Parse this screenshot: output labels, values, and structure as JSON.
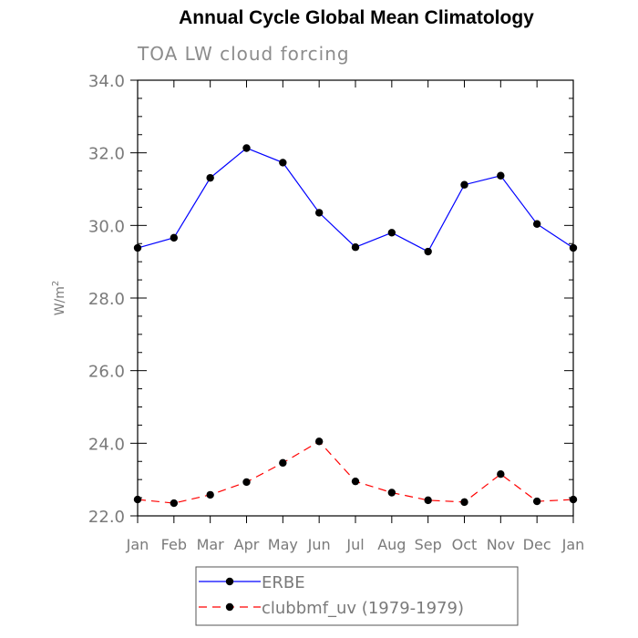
{
  "chart_data": {
    "type": "line",
    "title": "Annual Cycle Global Mean Climatology",
    "subtitle": "TOA LW cloud forcing",
    "xlabel": "",
    "ylabel": "W/m",
    "ylabel_superscript": "2",
    "categories": [
      "Jan",
      "Feb",
      "Mar",
      "Apr",
      "May",
      "Jun",
      "Jul",
      "Aug",
      "Sep",
      "Oct",
      "Nov",
      "Dec",
      "Jan"
    ],
    "ylim": [
      22.0,
      34.0
    ],
    "yticks": [
      "22.0",
      "24.0",
      "26.0",
      "28.0",
      "30.0",
      "32.0",
      "34.0"
    ],
    "series": [
      {
        "name": "ERBE",
        "color": "#0000ff",
        "dash": "solid",
        "values": [
          29.38,
          29.66,
          31.31,
          32.13,
          31.73,
          30.35,
          29.4,
          29.8,
          29.28,
          31.12,
          31.37,
          30.04,
          29.38
        ]
      },
      {
        "name": "clubbmf_uv (1979-1979)",
        "color": "#ff0000",
        "dash": "dashed",
        "values": [
          22.45,
          22.35,
          22.58,
          22.93,
          23.46,
          24.05,
          22.95,
          22.64,
          22.43,
          22.38,
          23.15,
          22.4,
          22.45
        ]
      }
    ],
    "legend": "bottom"
  }
}
